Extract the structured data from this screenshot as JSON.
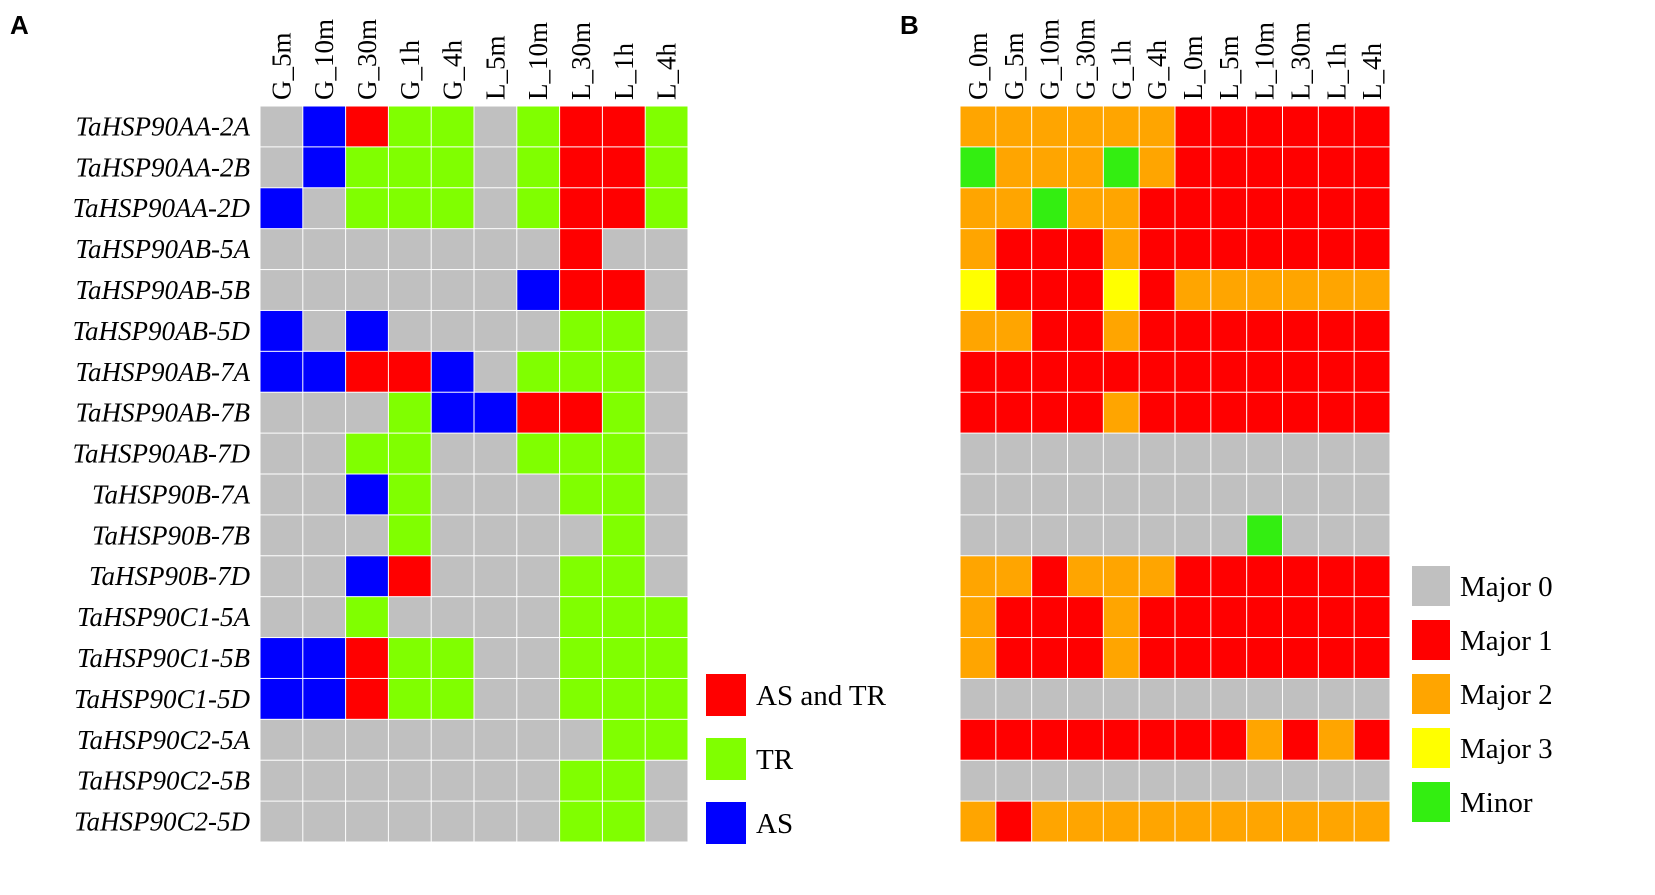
{
  "colors": {
    "gray": "#c0c0c0",
    "red": "#ff0000",
    "green": "#80ff00",
    "blue": "#0000ff",
    "orange": "#ffa500",
    "yellow": "#ffff00",
    "bright_green": "#33ee11",
    "grid": "#ffffff"
  },
  "chart_data": [
    {
      "type": "heatmap",
      "panel": "A",
      "columns": [
        "G_5m",
        "G_10m",
        "G_30m",
        "G_1h",
        "G_4h",
        "L_5m",
        "L_10m",
        "L_30m",
        "L_1h",
        "L_4h"
      ],
      "rows": [
        "TaHSP90AA-2A",
        "TaHSP90AA-2B",
        "TaHSP90AA-2D",
        "TaHSP90AB-5A",
        "TaHSP90AB-5B",
        "TaHSP90AB-5D",
        "TaHSP90AB-7A",
        "TaHSP90AB-7B",
        "TaHSP90AB-7D",
        "TaHSP90B-7A",
        "TaHSP90B-7B",
        "TaHSP90B-7D",
        "TaHSP90C1-5A",
        "TaHSP90C1-5B",
        "TaHSP90C1-5D",
        "TaHSP90C2-5A",
        "TaHSP90C2-5B",
        "TaHSP90C2-5D"
      ],
      "matrix": [
        [
          "none",
          "AS",
          "AS and TR",
          "TR",
          "TR",
          "none",
          "TR",
          "AS and TR",
          "AS and TR",
          "TR"
        ],
        [
          "none",
          "AS",
          "TR",
          "TR",
          "TR",
          "none",
          "TR",
          "AS and TR",
          "AS and TR",
          "TR"
        ],
        [
          "AS",
          "none",
          "TR",
          "TR",
          "TR",
          "none",
          "TR",
          "AS and TR",
          "AS and TR",
          "TR"
        ],
        [
          "none",
          "none",
          "none",
          "none",
          "none",
          "none",
          "none",
          "AS and TR",
          "none",
          "none"
        ],
        [
          "none",
          "none",
          "none",
          "none",
          "none",
          "none",
          "AS",
          "AS and TR",
          "AS and TR",
          "none"
        ],
        [
          "AS",
          "none",
          "AS",
          "none",
          "none",
          "none",
          "none",
          "TR",
          "TR",
          "none"
        ],
        [
          "AS",
          "AS",
          "AS and TR",
          "AS and TR",
          "AS",
          "none",
          "TR",
          "TR",
          "TR",
          "none"
        ],
        [
          "none",
          "none",
          "none",
          "TR",
          "AS",
          "AS",
          "AS and TR",
          "AS and TR",
          "TR",
          "none"
        ],
        [
          "none",
          "none",
          "TR",
          "TR",
          "none",
          "none",
          "TR",
          "TR",
          "TR",
          "none"
        ],
        [
          "none",
          "none",
          "AS",
          "TR",
          "none",
          "none",
          "none",
          "TR",
          "TR",
          "none"
        ],
        [
          "none",
          "none",
          "none",
          "TR",
          "none",
          "none",
          "none",
          "none",
          "TR",
          "none"
        ],
        [
          "none",
          "none",
          "AS",
          "AS and TR",
          "none",
          "none",
          "none",
          "TR",
          "TR",
          "none"
        ],
        [
          "none",
          "none",
          "TR",
          "none",
          "none",
          "none",
          "none",
          "TR",
          "TR",
          "TR"
        ],
        [
          "AS",
          "AS",
          "AS and TR",
          "TR",
          "TR",
          "none",
          "none",
          "TR",
          "TR",
          "TR"
        ],
        [
          "AS",
          "AS",
          "AS and TR",
          "TR",
          "TR",
          "none",
          "none",
          "TR",
          "TR",
          "TR"
        ],
        [
          "none",
          "none",
          "none",
          "none",
          "none",
          "none",
          "none",
          "none",
          "TR",
          "TR"
        ],
        [
          "none",
          "none",
          "none",
          "none",
          "none",
          "none",
          "none",
          "TR",
          "TR",
          "none"
        ],
        [
          "none",
          "none",
          "none",
          "none",
          "none",
          "none",
          "none",
          "TR",
          "TR",
          "none"
        ]
      ],
      "legend": [
        {
          "key": "AS and TR",
          "label": "AS and TR",
          "color": "#ff0000"
        },
        {
          "key": "TR",
          "label": "TR",
          "color": "#80ff00"
        },
        {
          "key": "AS",
          "label": "AS",
          "color": "#0000ff"
        }
      ],
      "default_color": "#c0c0c0"
    },
    {
      "type": "heatmap",
      "panel": "B",
      "columns": [
        "G_0m",
        "G_5m",
        "G_10m",
        "G_30m",
        "G_1h",
        "G_4h",
        "L_0m",
        "L_5m",
        "L_10m",
        "L_30m",
        "L_1h",
        "L_4h"
      ],
      "rows": [
        "TaHSP90AA-2A",
        "TaHSP90AA-2B",
        "TaHSP90AA-2D",
        "TaHSP90AB-5A",
        "TaHSP90AB-5B",
        "TaHSP90AB-5D",
        "TaHSP90AB-7A",
        "TaHSP90AB-7B",
        "TaHSP90AB-7D",
        "TaHSP90B-7A",
        "TaHSP90B-7B",
        "TaHSP90B-7D",
        "TaHSP90C1-5A",
        "TaHSP90C1-5B",
        "TaHSP90C1-5D",
        "TaHSP90C2-5A",
        "TaHSP90C2-5B",
        "TaHSP90C2-5D"
      ],
      "matrix": [
        [
          2,
          2,
          2,
          2,
          2,
          2,
          1,
          1,
          1,
          1,
          1,
          1
        ],
        [
          "m",
          2,
          2,
          2,
          "m",
          2,
          1,
          1,
          1,
          1,
          1,
          1
        ],
        [
          2,
          2,
          "m",
          2,
          2,
          1,
          1,
          1,
          1,
          1,
          1,
          1
        ],
        [
          2,
          1,
          1,
          1,
          2,
          1,
          1,
          1,
          1,
          1,
          1,
          1
        ],
        [
          3,
          1,
          1,
          1,
          3,
          1,
          2,
          2,
          2,
          2,
          2,
          2
        ],
        [
          2,
          2,
          1,
          1,
          2,
          1,
          1,
          1,
          1,
          1,
          1,
          1
        ],
        [
          1,
          1,
          1,
          1,
          1,
          1,
          1,
          1,
          1,
          1,
          1,
          1
        ],
        [
          1,
          1,
          1,
          1,
          2,
          1,
          1,
          1,
          1,
          1,
          1,
          1
        ],
        [
          0,
          0,
          0,
          0,
          0,
          0,
          0,
          0,
          0,
          0,
          0,
          0
        ],
        [
          0,
          0,
          0,
          0,
          0,
          0,
          0,
          0,
          0,
          0,
          0,
          0
        ],
        [
          0,
          0,
          0,
          0,
          0,
          0,
          0,
          0,
          "m",
          0,
          0,
          0
        ],
        [
          2,
          2,
          1,
          2,
          2,
          2,
          1,
          1,
          1,
          1,
          1,
          1
        ],
        [
          2,
          1,
          1,
          1,
          2,
          1,
          1,
          1,
          1,
          1,
          1,
          1
        ],
        [
          2,
          1,
          1,
          1,
          2,
          1,
          1,
          1,
          1,
          1,
          1,
          1
        ],
        [
          0,
          0,
          0,
          0,
          0,
          0,
          0,
          0,
          0,
          0,
          0,
          0
        ],
        [
          1,
          1,
          1,
          1,
          1,
          1,
          1,
          1,
          2,
          1,
          2,
          1
        ],
        [
          0,
          0,
          0,
          0,
          0,
          0,
          0,
          0,
          0,
          0,
          0,
          0
        ],
        [
          2,
          1,
          2,
          2,
          2,
          2,
          2,
          2,
          2,
          2,
          2,
          2
        ]
      ],
      "legend": [
        {
          "key": "0",
          "label": "Major 0",
          "color": "#c0c0c0"
        },
        {
          "key": "1",
          "label": "Major 1",
          "color": "#ff0000"
        },
        {
          "key": "2",
          "label": "Major 2",
          "color": "#ffa500"
        },
        {
          "key": "3",
          "label": "Major 3",
          "color": "#ffff00"
        },
        {
          "key": "m",
          "label": "Minor",
          "color": "#33ee11"
        }
      ]
    }
  ]
}
